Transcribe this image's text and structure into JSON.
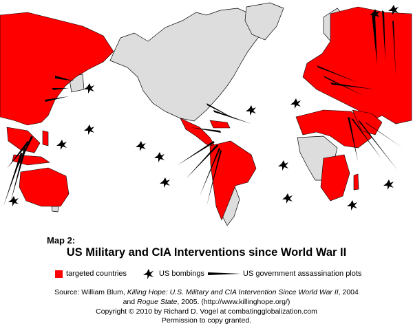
{
  "title": "US Military and CIA Interventions since World War II",
  "map_label": "Map 2:",
  "legend": {
    "targeted": "targeted countries",
    "bombings": "US bombings",
    "plots": "US government assassination plots"
  },
  "source": {
    "line1_prefix": "Source:  William Blum, ",
    "line1_book": "Killing Hope: U.S. Military and CIA Intervention Since World War II",
    "line1_suffix": ", 2004",
    "line2_prefix": "and ",
    "line2_book": "Rogue State",
    "line2_suffix": ", 2005. (http://www.killinghope.org/)",
    "line3": "Copyright  ©  2010 by Richard D. Vogel at combatingglobalization.com",
    "line4": "Permission to copy granted."
  },
  "colors": {
    "targeted": "#ff0000",
    "untargeted": "#dddddd",
    "outline": "#000000"
  },
  "icons": [
    "burst-bombing-icon",
    "wedge-assassination-plot-icon"
  ]
}
